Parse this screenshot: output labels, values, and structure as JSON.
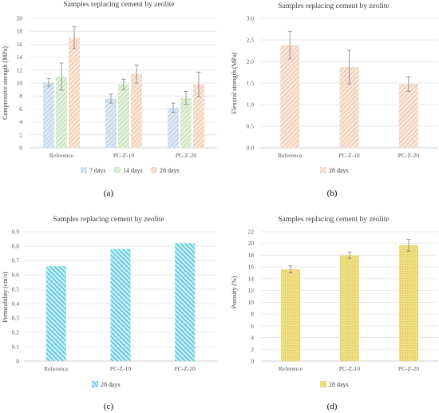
{
  "panel_labels": [
    "(a)",
    "(b)",
    "(c)",
    "(d)"
  ],
  "colors": {
    "7 days": "#c3d9ea",
    "14 days": "#cfe6c3",
    "28 days": "#f2d2b9",
    "permeability": "#33bfd3",
    "porosity": "#ecdb78",
    "error_bar": "#808080"
  },
  "chart_data": [
    {
      "type": "bar",
      "title": "Samples replacing cement by zeolite",
      "xlabel": "",
      "ylabel": "Compressive strength (MPa)",
      "categories": [
        "Reference",
        "PC-Z-10",
        "PC-Z-20"
      ],
      "series": [
        {
          "name": "7 days",
          "values": [
            10.1,
            7.6,
            6.2
          ],
          "errors": [
            0.6,
            0.7,
            0.7
          ]
        },
        {
          "name": "14 days",
          "values": [
            11.0,
            9.8,
            7.7
          ],
          "errors": [
            2.1,
            0.8,
            1.0
          ]
        },
        {
          "name": "28 days",
          "values": [
            17.0,
            11.4,
            9.8
          ],
          "errors": [
            1.7,
            1.4,
            1.9
          ]
        }
      ],
      "ylim": [
        0,
        20
      ],
      "yticks": [
        0,
        2,
        4,
        6,
        8,
        10,
        12,
        14,
        16,
        18,
        20
      ],
      "grid": true,
      "legend": "bottom"
    },
    {
      "type": "bar",
      "title": "Samples replacing cement by zeolite",
      "xlabel": "",
      "ylabel": "Flexural strength (MPa)",
      "categories": [
        "Reference",
        "PC-Z-10",
        "PC-Z-20"
      ],
      "series": [
        {
          "name": "28 days",
          "values": [
            2.38,
            1.87,
            1.48
          ],
          "errors": [
            0.32,
            0.39,
            0.17
          ]
        }
      ],
      "ylim": [
        0,
        3.0
      ],
      "yticks": [
        "0.0",
        "0.5",
        "1.0",
        "1.5",
        "2.0",
        "2.5",
        "3.0"
      ],
      "grid": true,
      "legend": "bottom"
    },
    {
      "type": "bar",
      "title": "Samples replacing cement by zeolite",
      "xlabel": "",
      "ylabel": "Permeability (cm/s)",
      "categories": [
        "Reference",
        "PC-Z-10",
        "PC-Z-20"
      ],
      "series": [
        {
          "name": "28 days",
          "values": [
            0.66,
            0.78,
            0.82
          ]
        }
      ],
      "ylim": [
        0,
        0.9
      ],
      "yticks": [
        "0",
        "0.1",
        "0.2",
        "0.3",
        "0.4",
        "0.5",
        "0.6",
        "0.7",
        "0.8",
        "0.9"
      ],
      "grid": true,
      "legend": "bottom"
    },
    {
      "type": "bar",
      "title": "Samples replacing cement by zeolite",
      "xlabel": "",
      "ylabel": "Porosity (%)",
      "categories": [
        "Reference",
        "PC-Z-10",
        "PC-Z-20"
      ],
      "series": [
        {
          "name": "28 days",
          "values": [
            15.6,
            18.0,
            19.7
          ],
          "errors": [
            0.6,
            0.5,
            1.0
          ]
        }
      ],
      "ylim": [
        0,
        22
      ],
      "yticks": [
        0,
        2,
        4,
        6,
        8,
        10,
        12,
        14,
        16,
        18,
        20,
        22
      ],
      "grid": true,
      "legend": "bottom"
    }
  ]
}
